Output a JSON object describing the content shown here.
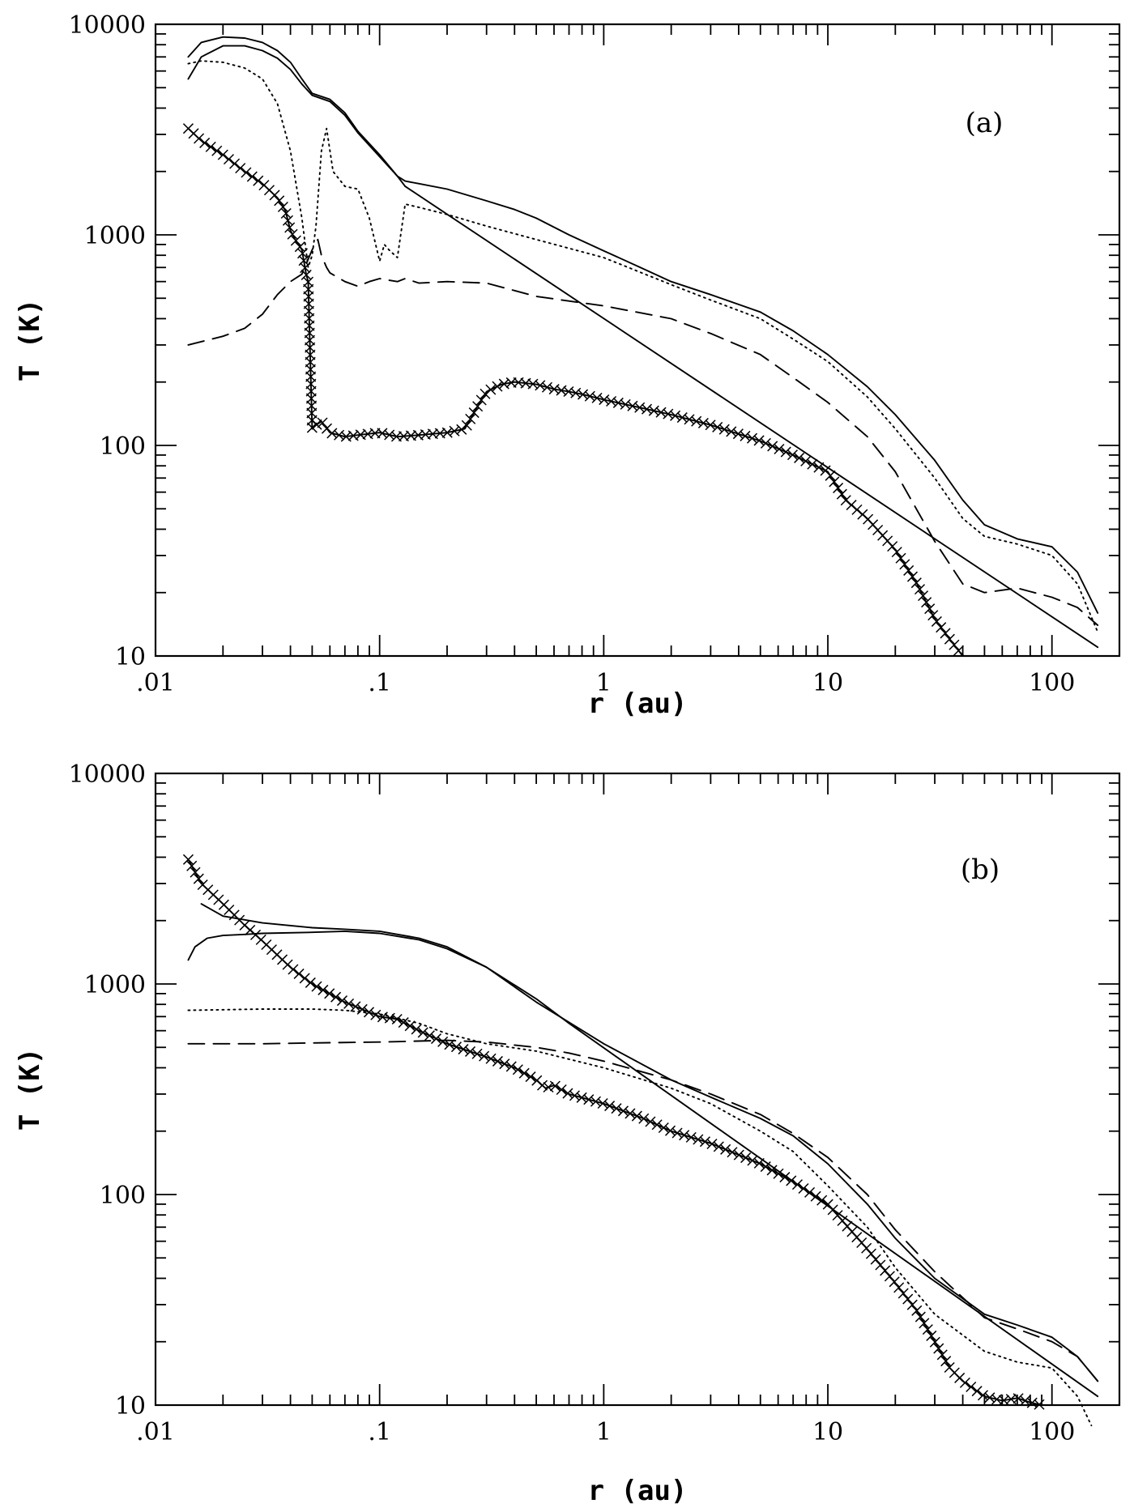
{
  "chart_data": [
    {
      "type": "line",
      "title": "",
      "panel_label": "(a)",
      "xlabel": "r (au)",
      "ylabel": "T (K)",
      "xscale": "log",
      "yscale": "log",
      "xlim": [
        0.01,
        200
      ],
      "ylim": [
        10,
        10000
      ],
      "x_ticks": [
        0.01,
        0.1,
        1,
        10,
        100
      ],
      "x_tick_labels": [
        ".01",
        ".1",
        "1",
        "10",
        "100"
      ],
      "y_ticks": [
        10,
        100,
        1000,
        10000
      ],
      "y_tick_labels": [
        "10",
        "100",
        "1000",
        "10000"
      ],
      "legend": "none",
      "series": [
        {
          "name": "solid upper",
          "style": "solid",
          "markers": false,
          "x": [
            0.014,
            0.016,
            0.02,
            0.025,
            0.03,
            0.035,
            0.04,
            0.045,
            0.05,
            0.06,
            0.07,
            0.08,
            0.1,
            0.12,
            0.13,
            0.15,
            0.2,
            0.3,
            0.4,
            0.5,
            0.7,
            1,
            1.5,
            2,
            3,
            5,
            7,
            10,
            15,
            20,
            30,
            40,
            50,
            70,
            100,
            130,
            160
          ],
          "y": [
            7000,
            8200,
            8700,
            8600,
            8200,
            7500,
            6600,
            5500,
            4700,
            4400,
            3800,
            3100,
            2400,
            1900,
            1800,
            1750,
            1650,
            1450,
            1320,
            1200,
            1000,
            840,
            690,
            600,
            520,
            430,
            350,
            270,
            190,
            140,
            85,
            55,
            42,
            36,
            33,
            25,
            16
          ]
        },
        {
          "name": "solid middle",
          "style": "solid",
          "markers": false,
          "x": [
            0.014,
            0.016,
            0.02,
            0.025,
            0.03,
            0.035,
            0.04,
            0.045,
            0.05,
            0.06,
            0.07,
            0.08,
            0.1,
            0.12,
            0.13
          ],
          "y": [
            5500,
            7000,
            7900,
            7900,
            7500,
            6900,
            6100,
            5200,
            4600,
            4300,
            3700,
            3050,
            2350,
            1900,
            1700
          ]
        },
        {
          "name": "solid straight line",
          "style": "solid",
          "markers": false,
          "x": [
            0.13,
            160
          ],
          "y": [
            1700,
            11
          ]
        },
        {
          "name": "dotted",
          "style": "dotted",
          "markers": false,
          "x": [
            0.014,
            0.016,
            0.02,
            0.025,
            0.03,
            0.035,
            0.04,
            0.045,
            0.048,
            0.05,
            0.052,
            0.055,
            0.058,
            0.062,
            0.07,
            0.08,
            0.09,
            0.1,
            0.105,
            0.11,
            0.12,
            0.13,
            0.15,
            0.2,
            0.3,
            0.5,
            1,
            2,
            3,
            5,
            7,
            10,
            15,
            20,
            30,
            40,
            50,
            70,
            100,
            130,
            160
          ],
          "y": [
            6500,
            6700,
            6600,
            6200,
            5500,
            4200,
            2500,
            1200,
            700,
            800,
            1100,
            2500,
            3200,
            2000,
            1700,
            1650,
            1200,
            750,
            900,
            850,
            780,
            1400,
            1350,
            1250,
            1100,
            950,
            780,
            580,
            490,
            400,
            320,
            250,
            170,
            120,
            70,
            45,
            37,
            34,
            30,
            22,
            13
          ]
        },
        {
          "name": "dashed",
          "style": "dashed",
          "markers": false,
          "x": [
            0.014,
            0.02,
            0.025,
            0.03,
            0.035,
            0.04,
            0.045,
            0.05,
            0.053,
            0.055,
            0.058,
            0.06,
            0.07,
            0.08,
            0.09,
            0.1,
            0.12,
            0.13,
            0.15,
            0.2,
            0.3,
            0.5,
            1,
            2,
            3,
            5,
            7,
            10,
            15,
            20,
            30,
            40,
            50,
            70,
            100,
            130,
            160
          ],
          "y": [
            300,
            330,
            360,
            420,
            520,
            600,
            650,
            850,
            950,
            800,
            700,
            660,
            600,
            570,
            600,
            620,
            600,
            620,
            590,
            600,
            590,
            510,
            460,
            400,
            340,
            270,
            210,
            160,
            110,
            75,
            35,
            22,
            20,
            21,
            19,
            17,
            14
          ]
        },
        {
          "name": "crosses",
          "style": "solid",
          "markers": true,
          "x": [
            0.014,
            0.016,
            0.02,
            0.025,
            0.03,
            0.035,
            0.038,
            0.04,
            0.042,
            0.045,
            0.047,
            0.048,
            0.05,
            0.052,
            0.055,
            0.06,
            0.07,
            0.08,
            0.1,
            0.12,
            0.15,
            0.2,
            0.24,
            0.28,
            0.3,
            0.35,
            0.4,
            0.5,
            0.6,
            0.7,
            0.8,
            1,
            1.5,
            2,
            3,
            5,
            7,
            10,
            12,
            15,
            20,
            25,
            30,
            35,
            40
          ],
          "y": [
            3200,
            2800,
            2400,
            2000,
            1750,
            1500,
            1300,
            1050,
            950,
            850,
            650,
            600,
            120,
            125,
            130,
            115,
            110,
            112,
            115,
            110,
            112,
            115,
            120,
            160,
            180,
            195,
            200,
            195,
            185,
            180,
            175,
            165,
            150,
            140,
            125,
            105,
            90,
            75,
            55,
            45,
            32,
            22,
            15,
            12,
            10
          ]
        }
      ]
    },
    {
      "type": "line",
      "title": "",
      "panel_label": "(b)",
      "xlabel": "r (au)",
      "ylabel": "T (K)",
      "xscale": "log",
      "yscale": "log",
      "xlim": [
        0.01,
        200
      ],
      "ylim": [
        10,
        10000
      ],
      "x_ticks": [
        0.01,
        0.1,
        1,
        10,
        100
      ],
      "x_tick_labels": [
        ".01",
        ".1",
        "1",
        "10",
        "100"
      ],
      "y_ticks": [
        10,
        100,
        1000,
        10000
      ],
      "y_tick_labels": [
        "10",
        "100",
        "1000",
        "10000"
      ],
      "legend": "none",
      "series": [
        {
          "name": "solid upper",
          "style": "solid",
          "markers": false,
          "x": [
            0.016,
            0.02,
            0.03,
            0.05,
            0.07,
            0.1,
            0.15,
            0.2,
            0.3,
            0.5,
            1,
            2,
            3,
            5,
            7,
            10,
            15,
            20,
            30,
            50,
            70,
            100,
            130,
            160
          ],
          "y": [
            2400,
            2100,
            1950,
            1850,
            1820,
            1780,
            1650,
            1500,
            1200,
            820,
            520,
            350,
            290,
            230,
            190,
            140,
            90,
            62,
            40,
            27,
            24,
            21,
            17,
            13
          ]
        },
        {
          "name": "solid lower",
          "style": "solid",
          "markers": false,
          "x": [
            0.014,
            0.015,
            0.017,
            0.02,
            0.025,
            0.03,
            0.05,
            0.07,
            0.1,
            0.15,
            0.2,
            0.3,
            0.5,
            0.7
          ],
          "y": [
            1300,
            1500,
            1650,
            1700,
            1720,
            1740,
            1760,
            1780,
            1740,
            1620,
            1470,
            1200,
            850,
            650
          ]
        },
        {
          "name": "solid straight line",
          "style": "solid",
          "markers": false,
          "x": [
            0.7,
            160
          ],
          "y": [
            650,
            11
          ]
        },
        {
          "name": "dotted",
          "style": "dotted",
          "markers": false,
          "x": [
            0.014,
            0.03,
            0.05,
            0.07,
            0.1,
            0.15,
            0.2,
            0.3,
            0.5,
            1,
            2,
            3,
            5,
            7,
            10,
            15,
            20,
            30,
            50,
            70,
            100,
            130,
            150
          ],
          "y": [
            750,
            760,
            760,
            750,
            720,
            650,
            580,
            520,
            480,
            400,
            320,
            270,
            200,
            160,
            110,
            70,
            45,
            27,
            18,
            16,
            15,
            11,
            8
          ]
        },
        {
          "name": "dashed",
          "style": "dashed",
          "markers": false,
          "x": [
            0.014,
            0.03,
            0.05,
            0.1,
            0.2,
            0.3,
            0.5,
            0.7,
            1,
            2,
            3,
            5,
            7,
            10,
            15,
            20,
            30,
            50,
            70,
            100,
            130,
            160
          ],
          "y": [
            520,
            520,
            525,
            530,
            540,
            530,
            500,
            470,
            430,
            350,
            300,
            240,
            195,
            150,
            100,
            68,
            43,
            26,
            23,
            20,
            17,
            13
          ]
        },
        {
          "name": "crosses",
          "style": "solid",
          "markers": true,
          "x": [
            0.014,
            0.016,
            0.02,
            0.025,
            0.03,
            0.04,
            0.05,
            0.07,
            0.1,
            0.12,
            0.15,
            0.2,
            0.3,
            0.4,
            0.5,
            0.55,
            0.6,
            0.7,
            1,
            1.5,
            2,
            3,
            5,
            7,
            10,
            15,
            20,
            25,
            30,
            35,
            40,
            50,
            60,
            70,
            80,
            90
          ],
          "y": [
            3900,
            3000,
            2400,
            1900,
            1600,
            1200,
            1000,
            820,
            700,
            680,
            600,
            520,
            450,
            400,
            350,
            320,
            330,
            300,
            270,
            230,
            200,
            175,
            140,
            115,
            90,
            55,
            38,
            28,
            20,
            15,
            13,
            11,
            10.5,
            10.8,
            10.3,
            10
          ]
        }
      ]
    }
  ]
}
